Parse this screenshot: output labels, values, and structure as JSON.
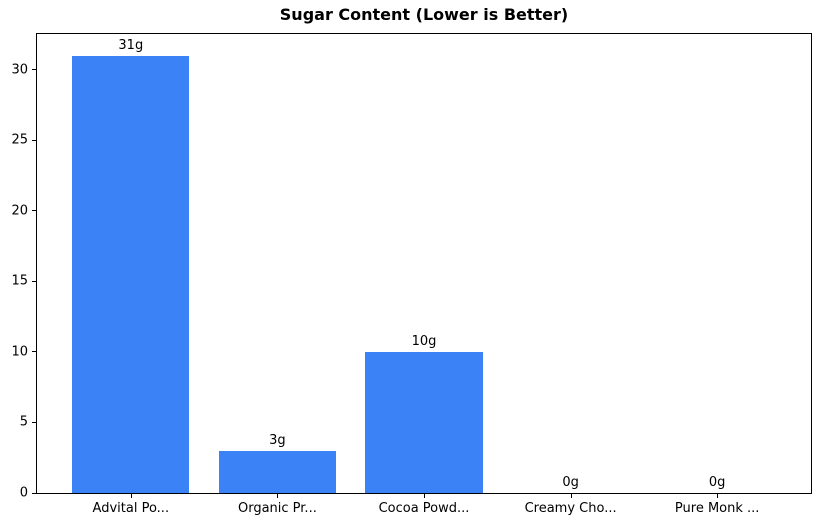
{
  "chart_data": {
    "type": "bar",
    "title": "Sugar Content (Lower is Better)",
    "categories": [
      "Advital Po...",
      "Organic Pr...",
      "Cocoa Powd...",
      "Creamy Cho...",
      "Pure Monk ..."
    ],
    "values": [
      31,
      3,
      10,
      0,
      0
    ],
    "value_labels": [
      "31g",
      "3g",
      "10g",
      "0g",
      "0g"
    ],
    "xlabel": "",
    "ylabel": "",
    "ylim": [
      0,
      32.55
    ],
    "yticks": [
      0,
      5,
      10,
      15,
      20,
      25,
      30
    ],
    "grid": false,
    "legend_position": "none",
    "colors": {
      "bar": "#3b82f6",
      "axis": "#000000",
      "text": "#000000",
      "background": "#ffffff"
    }
  }
}
